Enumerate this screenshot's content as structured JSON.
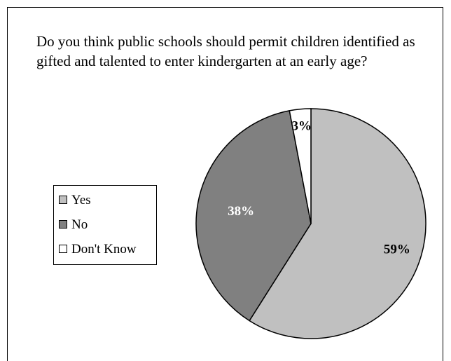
{
  "chart_data": {
    "type": "pie",
    "title": "Do you think public schools should permit children identified as gifted and talented to enter kindergarten at an early age?",
    "categories": [
      "Yes",
      "No",
      "Don't Know"
    ],
    "values": [
      59,
      38,
      3
    ],
    "labels": [
      "59%",
      "38%",
      "3%"
    ],
    "colors": [
      "#c0c0c0",
      "#808080",
      "#ffffff"
    ],
    "label_colors": [
      "#000000",
      "#ffffff",
      "#000000"
    ],
    "legend_placement": "left"
  }
}
